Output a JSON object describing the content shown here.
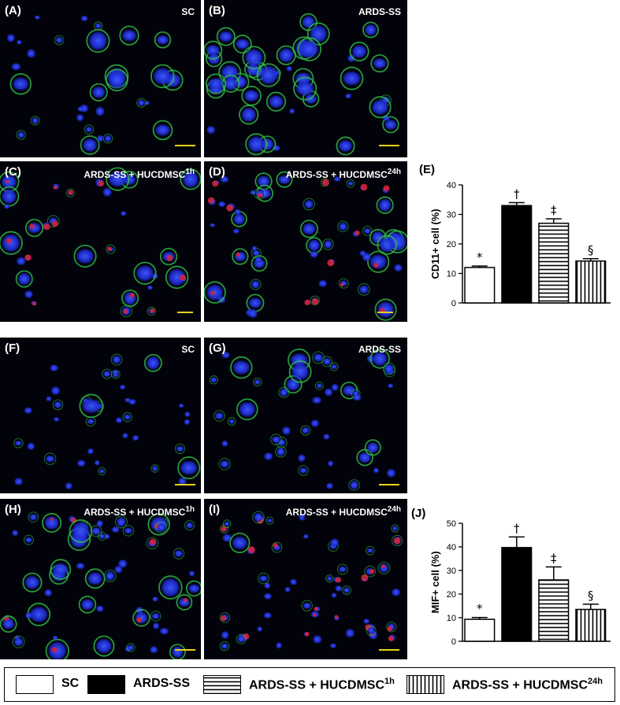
{
  "panels": [
    {
      "label": "(A)",
      "title": "SC",
      "title_sup": ""
    },
    {
      "label": "(B)",
      "title": "ARDS-SS",
      "title_sup": ""
    },
    {
      "label": "(C)",
      "title": "ARDS-SS + HUCDMSC",
      "title_sup": "1h"
    },
    {
      "label": "(D)",
      "title": "ARDS-SS + HUCDMSC",
      "title_sup": "24h"
    },
    {
      "label": "(F)",
      "title": "SC",
      "title_sup": ""
    },
    {
      "label": "(G)",
      "title": "ARDS-SS",
      "title_sup": ""
    },
    {
      "label": "(H)",
      "title": "ARDS-SS + HUCDMSC",
      "title_sup": "1h"
    },
    {
      "label": "(I)",
      "title": "ARDS-SS + HUCDMSC",
      "title_sup": "24h"
    }
  ],
  "colors": {
    "nucleus": "#2a3cff",
    "cd11_green": "#2fbf4a",
    "mif_red": "#d0243a",
    "scale_bar": "#e6d21a"
  },
  "chart_data": [
    {
      "type": "bar",
      "panel_label": "(E)",
      "ylabel": "CD11+ cell (%)",
      "ylim": [
        0,
        40
      ],
      "yticks": [
        0,
        10,
        20,
        30,
        40
      ],
      "categories": [
        "SC",
        "ARDS-SS",
        "ARDS-SS + HUCDMSC1h",
        "ARDS-SS + HUCDMSC24h"
      ],
      "values": [
        12,
        33,
        27,
        14.2
      ],
      "errors": [
        0.5,
        1.0,
        1.5,
        0.8
      ],
      "annotations": [
        "*",
        "†",
        "‡",
        "§"
      ],
      "patterns": [
        "white",
        "black",
        "horizontal",
        "vertical"
      ]
    },
    {
      "type": "bar",
      "panel_label": "(J)",
      "ylabel": "MIF+ cell (%)",
      "ylim": [
        0,
        50
      ],
      "yticks": [
        0,
        10,
        20,
        30,
        40,
        50
      ],
      "categories": [
        "SC",
        "ARDS-SS",
        "ARDS-SS + HUCDMSC1h",
        "ARDS-SS + HUCDMSC24h"
      ],
      "values": [
        9.3,
        39.7,
        26,
        13.5
      ],
      "errors": [
        0.8,
        4.5,
        5.5,
        2.2
      ],
      "annotations": [
        "*",
        "†",
        "‡",
        "§"
      ],
      "patterns": [
        "white",
        "black",
        "horizontal",
        "vertical"
      ]
    }
  ],
  "legend": [
    {
      "label": "SC",
      "sup": "",
      "pattern": "white"
    },
    {
      "label": "ARDS-SS",
      "sup": "",
      "pattern": "black"
    },
    {
      "label": "ARDS-SS + HUCDMSC",
      "sup": "1h",
      "pattern": "horizontal"
    },
    {
      "label": "ARDS-SS + HUCDMSC",
      "sup": "24h",
      "pattern": "vertical"
    }
  ]
}
